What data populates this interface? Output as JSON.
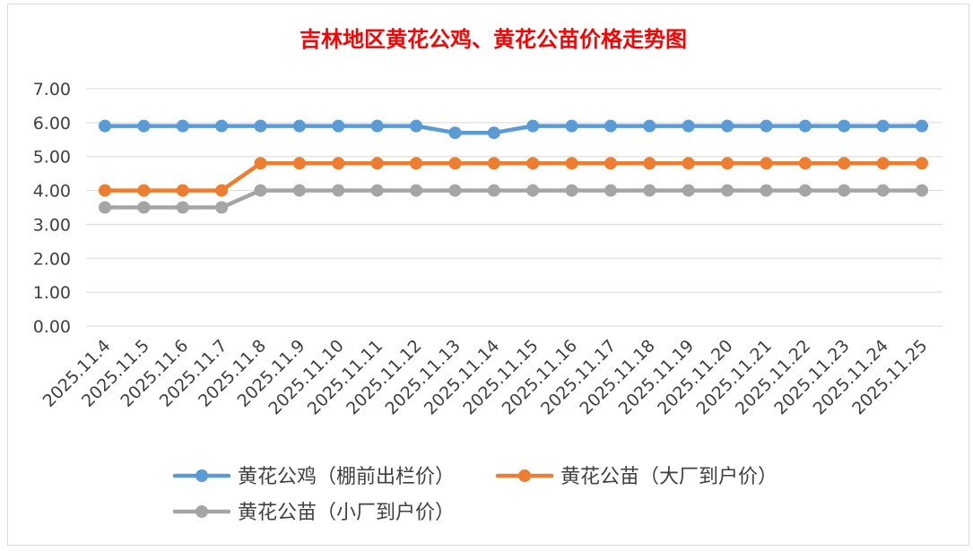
{
  "chart_data": {
    "type": "line",
    "title": "吉林地区黄花公鸡、黄花公苗价格走势图",
    "title_color": "#ff0000",
    "xlabel": "",
    "ylabel": "",
    "ylim": [
      0,
      7
    ],
    "yticks": [
      "0.00",
      "1.00",
      "2.00",
      "3.00",
      "4.00",
      "5.00",
      "6.00",
      "7.00"
    ],
    "grid": true,
    "legend_position": "bottom",
    "categories": [
      "2025.11.4",
      "2025.11.5",
      "2025.11.6",
      "2025.11.7",
      "2025.11.8",
      "2025.11.9",
      "2025.11.10",
      "2025.11.11",
      "2025.11.12",
      "2025.11.13",
      "2025.11.14",
      "2025.11.15",
      "2025.11.16",
      "2025.11.17",
      "2025.11.18",
      "2025.11.19",
      "2025.11.20",
      "2025.11.21",
      "2025.11.22",
      "2025.11.23",
      "2025.11.24",
      "2025.11.25"
    ],
    "series": [
      {
        "name": "黄花公鸡（棚前出栏价）",
        "color": "#5b9bd5",
        "values": [
          5.9,
          5.9,
          5.9,
          5.9,
          5.9,
          5.9,
          5.9,
          5.9,
          5.9,
          5.7,
          5.7,
          5.9,
          5.9,
          5.9,
          5.9,
          5.9,
          5.9,
          5.9,
          5.9,
          5.9,
          5.9,
          5.9
        ]
      },
      {
        "name": "黄花公苗（大厂到户价）",
        "color": "#ed7d31",
        "values": [
          4.0,
          4.0,
          4.0,
          4.0,
          4.8,
          4.8,
          4.8,
          4.8,
          4.8,
          4.8,
          4.8,
          4.8,
          4.8,
          4.8,
          4.8,
          4.8,
          4.8,
          4.8,
          4.8,
          4.8,
          4.8,
          4.8
        ]
      },
      {
        "name": "黄花公苗（小厂到户价）",
        "color": "#a5a5a5",
        "values": [
          3.5,
          3.5,
          3.5,
          3.5,
          4.0,
          4.0,
          4.0,
          4.0,
          4.0,
          4.0,
          4.0,
          4.0,
          4.0,
          4.0,
          4.0,
          4.0,
          4.0,
          4.0,
          4.0,
          4.0,
          4.0,
          4.0
        ]
      }
    ]
  }
}
